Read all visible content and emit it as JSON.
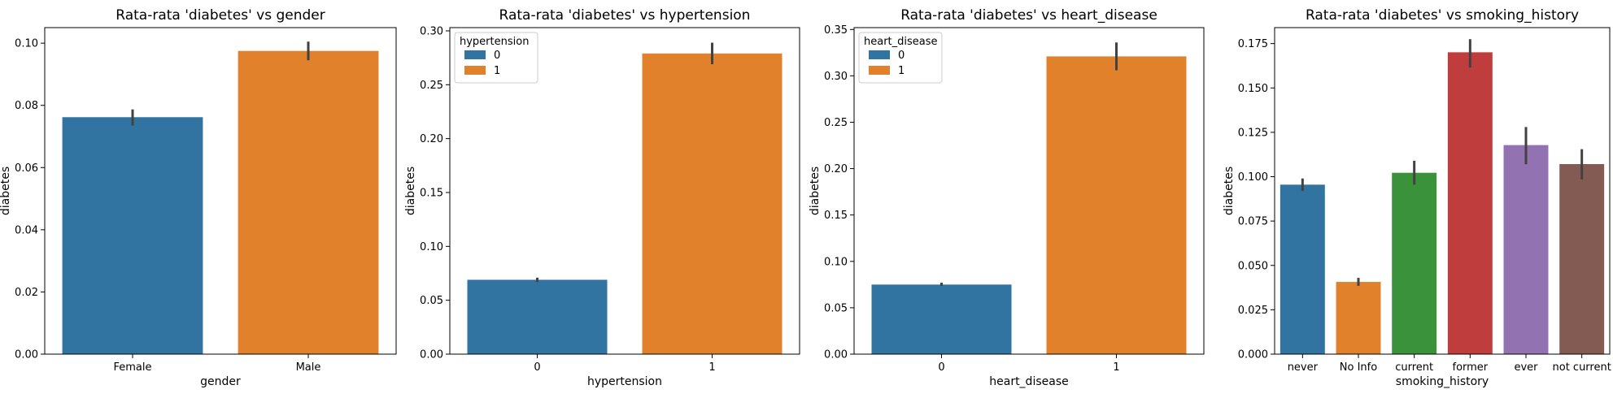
{
  "chart_data": [
    {
      "type": "bar",
      "title": "Rata-rata 'diabetes' vs gender",
      "xlabel": "gender",
      "ylabel": "diabetes",
      "categories": [
        "Female",
        "Male"
      ],
      "values": [
        0.0762,
        0.0975
      ],
      "error_low": [
        0.0735,
        0.0945
      ],
      "error_high": [
        0.0787,
        0.1005
      ],
      "colors": [
        "#3274a1",
        "#e1812c"
      ],
      "ylim": [
        0,
        0.105
      ],
      "yticks": [
        "0.00",
        "0.02",
        "0.04",
        "0.06",
        "0.08",
        "0.10"
      ],
      "legend": null
    },
    {
      "type": "bar",
      "title": "Rata-rata 'diabetes' vs hypertension",
      "xlabel": "hypertension",
      "ylabel": "diabetes",
      "categories": [
        "0",
        "1"
      ],
      "values": [
        0.069,
        0.279
      ],
      "error_low": [
        0.067,
        0.269
      ],
      "error_high": [
        0.071,
        0.289
      ],
      "colors": [
        "#3274a1",
        "#e1812c"
      ],
      "ylim": [
        0,
        0.303
      ],
      "yticks": [
        "0.00",
        "0.05",
        "0.10",
        "0.15",
        "0.20",
        "0.25",
        "0.30"
      ],
      "legend": {
        "title": "hypertension",
        "entries": [
          "0",
          "1"
        ],
        "placement": "top-left"
      }
    },
    {
      "type": "bar",
      "title": "Rata-rata 'diabetes' vs heart_disease",
      "xlabel": "heart_disease",
      "ylabel": "diabetes",
      "categories": [
        "0",
        "1"
      ],
      "values": [
        0.075,
        0.321
      ],
      "error_low": [
        0.0735,
        0.306
      ],
      "error_high": [
        0.077,
        0.336
      ],
      "colors": [
        "#3274a1",
        "#e1812c"
      ],
      "ylim": [
        0,
        0.352
      ],
      "yticks": [
        "0.00",
        "0.05",
        "0.10",
        "0.15",
        "0.20",
        "0.25",
        "0.30",
        "0.35"
      ],
      "legend": {
        "title": "heart_disease",
        "entries": [
          "0",
          "1"
        ],
        "placement": "top-left"
      }
    },
    {
      "type": "bar",
      "title": "Rata-rata 'diabetes' vs smoking_history",
      "xlabel": "smoking_history",
      "ylabel": "diabetes",
      "categories": [
        "never",
        "No Info",
        "current",
        "former",
        "ever",
        "not current"
      ],
      "values": [
        0.0955,
        0.0407,
        0.1022,
        0.1701,
        0.1178,
        0.1071
      ],
      "error_low": [
        0.092,
        0.0385,
        0.0955,
        0.1615,
        0.107,
        0.0985
      ],
      "error_high": [
        0.099,
        0.043,
        0.109,
        0.1775,
        0.128,
        0.1155
      ],
      "colors": [
        "#3274a1",
        "#e1812c",
        "#3a923a",
        "#c03d3e",
        "#9372b2",
        "#845b53"
      ],
      "ylim": [
        0,
        0.184
      ],
      "yticks": [
        "0.000",
        "0.025",
        "0.050",
        "0.075",
        "0.100",
        "0.125",
        "0.150",
        "0.175"
      ],
      "legend": null
    }
  ]
}
